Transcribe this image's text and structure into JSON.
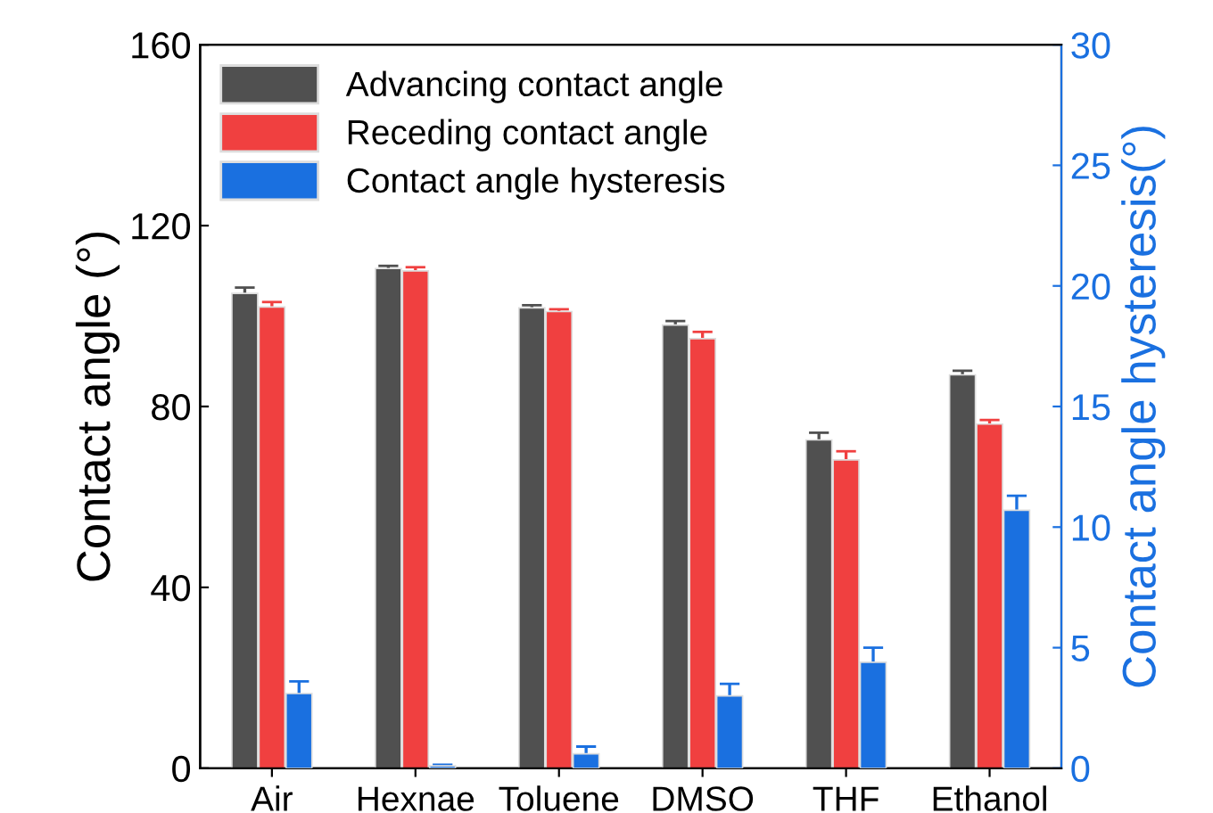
{
  "chart_data": {
    "type": "bar",
    "ylabel": "Contact angle (°)",
    "y2label": "Contact angle hysteresis(°)",
    "categories": [
      "Air",
      "Hexnae",
      "Toluene",
      "DMSO",
      "THF",
      "Ethanol"
    ],
    "series": [
      {
        "name": "Advancing contact angle",
        "color": "#505050",
        "values": [
          105,
          110.5,
          101.8,
          98,
          72.6,
          87
        ],
        "errors": [
          1.3,
          0.6,
          0.6,
          0.9,
          1.6,
          0.9
        ]
      },
      {
        "name": "Receding contact angle",
        "color": "#f04040",
        "values": [
          102,
          110,
          101,
          95,
          68.2,
          76.1
        ],
        "errors": [
          1.1,
          0.8,
          0.5,
          1.5,
          1.9,
          0.9
        ]
      },
      {
        "name": "Contact angle hysteresis",
        "color": "#1a70e0",
        "axis": "y2",
        "values": [
          3.1,
          0.1,
          0.6,
          3.0,
          4.4,
          10.7
        ],
        "errors": [
          0.5,
          0.05,
          0.3,
          0.5,
          0.6,
          0.6
        ]
      }
    ],
    "ylim": [
      0,
      160
    ],
    "yticks": [
      0,
      40,
      80,
      120,
      160
    ],
    "y2lim": [
      0,
      30
    ],
    "y2ticks": [
      0,
      5,
      10,
      15,
      20,
      25,
      30
    ],
    "legend": "top left",
    "grid": false
  }
}
